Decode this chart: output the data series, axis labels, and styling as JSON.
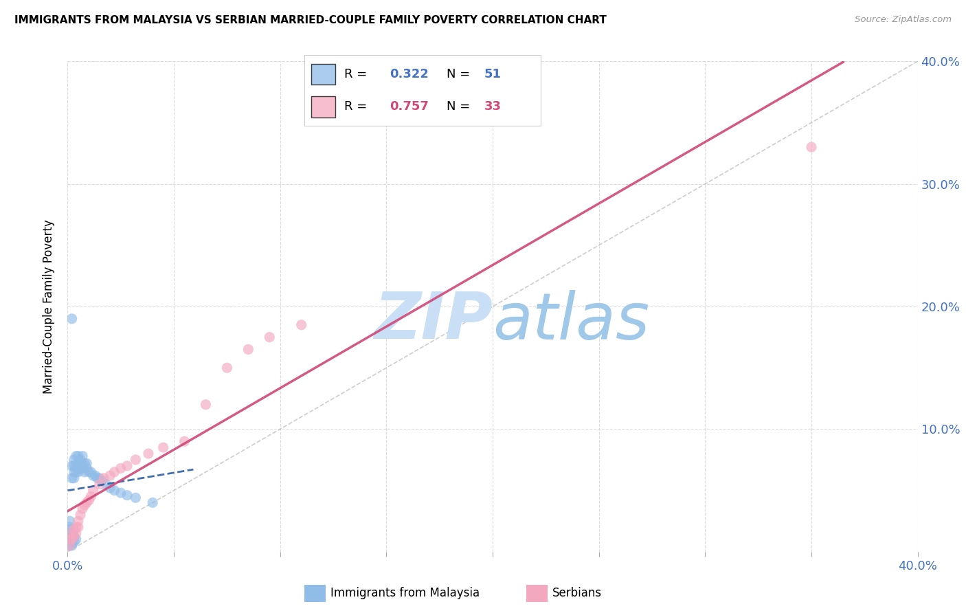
{
  "title": "IMMIGRANTS FROM MALAYSIA VS SERBIAN MARRIED-COUPLE FAMILY POVERTY CORRELATION CHART",
  "source": "Source: ZipAtlas.com",
  "ylabel": "Married-Couple Family Poverty",
  "xlim": [
    0.0,
    0.4
  ],
  "ylim": [
    0.0,
    0.4
  ],
  "malaysia_R": 0.322,
  "malaysia_N": 51,
  "serbian_R": 0.757,
  "serbian_N": 33,
  "malaysia_color": "#90bce8",
  "serbian_color": "#f4a8c0",
  "malaysia_line_color": "#2255a0",
  "serbian_line_color": "#d04878",
  "diagonal_color": "#b8b8b8",
  "tick_color": "#4472c4",
  "legend_text_malaysia_color": "#4472c4",
  "legend_text_serbian_color": "#d04878",
  "watermark_zip_color": "#c8dff5",
  "watermark_atlas_color": "#a0c8e8",
  "malaysia_x": [
    0.001,
    0.001,
    0.001,
    0.001,
    0.001,
    0.001,
    0.001,
    0.002,
    0.002,
    0.002,
    0.002,
    0.002,
    0.002,
    0.003,
    0.003,
    0.003,
    0.003,
    0.003,
    0.003,
    0.004,
    0.004,
    0.004,
    0.004,
    0.005,
    0.005,
    0.005,
    0.005,
    0.006,
    0.006,
    0.007,
    0.007,
    0.007,
    0.008,
    0.008,
    0.009,
    0.009,
    0.01,
    0.011,
    0.012,
    0.013,
    0.014,
    0.015,
    0.016,
    0.018,
    0.02,
    0.022,
    0.025,
    0.028,
    0.032,
    0.04,
    0.002
  ],
  "malaysia_y": [
    0.005,
    0.01,
    0.012,
    0.015,
    0.018,
    0.02,
    0.025,
    0.005,
    0.008,
    0.012,
    0.015,
    0.06,
    0.07,
    0.008,
    0.012,
    0.06,
    0.065,
    0.07,
    0.075,
    0.01,
    0.065,
    0.07,
    0.078,
    0.065,
    0.068,
    0.072,
    0.078,
    0.068,
    0.075,
    0.068,
    0.072,
    0.078,
    0.065,
    0.072,
    0.068,
    0.072,
    0.065,
    0.065,
    0.062,
    0.062,
    0.06,
    0.06,
    0.058,
    0.055,
    0.052,
    0.05,
    0.048,
    0.046,
    0.044,
    0.04,
    0.19
  ],
  "serbian_x": [
    0.001,
    0.001,
    0.002,
    0.002,
    0.003,
    0.003,
    0.004,
    0.004,
    0.005,
    0.005,
    0.006,
    0.007,
    0.008,
    0.009,
    0.01,
    0.011,
    0.012,
    0.015,
    0.017,
    0.02,
    0.022,
    0.025,
    0.028,
    0.032,
    0.038,
    0.045,
    0.055,
    0.065,
    0.075,
    0.085,
    0.095,
    0.11,
    0.35
  ],
  "serbian_y": [
    0.005,
    0.01,
    0.01,
    0.015,
    0.012,
    0.018,
    0.015,
    0.02,
    0.02,
    0.025,
    0.03,
    0.035,
    0.038,
    0.04,
    0.042,
    0.045,
    0.05,
    0.055,
    0.06,
    0.062,
    0.065,
    0.068,
    0.07,
    0.075,
    0.08,
    0.085,
    0.09,
    0.12,
    0.15,
    0.165,
    0.175,
    0.185,
    0.33
  ]
}
